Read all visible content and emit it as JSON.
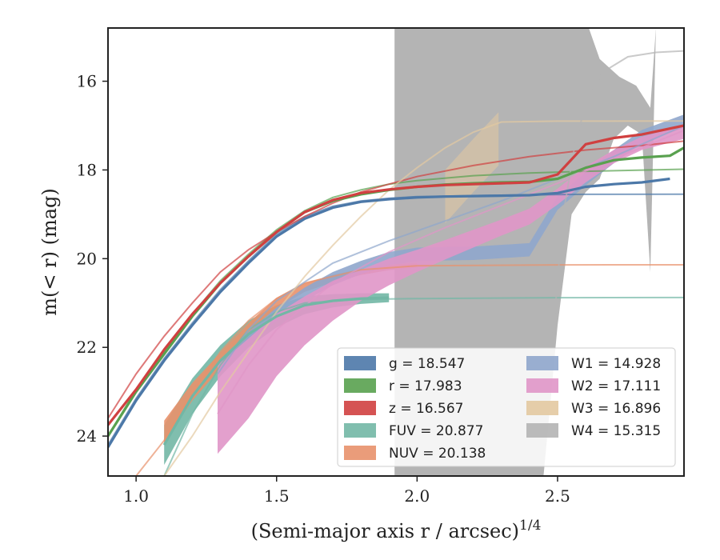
{
  "chart_data": {
    "type": "line",
    "xlabel": "(Semi-major axis r / arcsec)",
    "xlabel_exponent": "1/4",
    "ylabel": "m(< r) (mag)",
    "xlim": [
      0.9,
      2.95
    ],
    "ylim": [
      24.9,
      14.8
    ],
    "y_inverted": true,
    "x_ticks": [
      1.0,
      1.5,
      2.0,
      2.5
    ],
    "x_tick_labels": [
      "1.0",
      "1.5",
      "2.0",
      "2.5"
    ],
    "y_ticks": [
      16,
      18,
      20,
      22,
      24
    ],
    "y_tick_labels": [
      "16",
      "18",
      "20",
      "22",
      "24"
    ],
    "grid": false,
    "legend_position": "bottom-right",
    "legend_columns": 2,
    "series": [
      {
        "name": "g",
        "legend": "g = 18.547",
        "color": "#4c78a8",
        "profile": [
          [
            0.9,
            24.25
          ],
          [
            1.0,
            23.2
          ],
          [
            1.1,
            22.3
          ],
          [
            1.2,
            21.5
          ],
          [
            1.3,
            20.75
          ],
          [
            1.4,
            20.1
          ],
          [
            1.5,
            19.5
          ],
          [
            1.6,
            19.1
          ],
          [
            1.7,
            18.85
          ],
          [
            1.8,
            18.72
          ],
          [
            1.9,
            18.66
          ],
          [
            2.0,
            18.62
          ],
          [
            2.1,
            18.6
          ],
          [
            2.2,
            18.59
          ],
          [
            2.3,
            18.58
          ],
          [
            2.4,
            18.57
          ],
          [
            2.5,
            18.52
          ],
          [
            2.6,
            18.38
          ],
          [
            2.7,
            18.32
          ],
          [
            2.8,
            18.28
          ],
          [
            2.9,
            18.2
          ]
        ],
        "asymptote": [
          [
            0.9,
            24.2
          ],
          [
            1.0,
            23.15
          ],
          [
            1.1,
            22.25
          ],
          [
            1.2,
            21.45
          ],
          [
            1.3,
            20.7
          ],
          [
            1.4,
            20.05
          ],
          [
            1.5,
            19.45
          ],
          [
            1.6,
            19.05
          ],
          [
            1.7,
            18.82
          ],
          [
            1.8,
            18.7
          ],
          [
            1.9,
            18.64
          ],
          [
            2.0,
            18.6
          ],
          [
            2.3,
            18.57
          ],
          [
            2.6,
            18.55
          ],
          [
            2.95,
            18.547
          ]
        ]
      },
      {
        "name": "r",
        "legend": "r = 17.983",
        "color": "#59a14f",
        "profile": [
          [
            0.9,
            24.0
          ],
          [
            1.0,
            23.0
          ],
          [
            1.1,
            22.15
          ],
          [
            1.2,
            21.3
          ],
          [
            1.3,
            20.55
          ],
          [
            1.4,
            19.95
          ],
          [
            1.5,
            19.4
          ],
          [
            1.6,
            18.95
          ],
          [
            1.7,
            18.7
          ],
          [
            1.8,
            18.55
          ],
          [
            1.9,
            18.45
          ],
          [
            2.0,
            18.38
          ],
          [
            2.1,
            18.33
          ],
          [
            2.2,
            18.3
          ],
          [
            2.3,
            18.28
          ],
          [
            2.4,
            18.27
          ],
          [
            2.5,
            18.2
          ],
          [
            2.6,
            17.95
          ],
          [
            2.7,
            17.78
          ],
          [
            2.8,
            17.72
          ],
          [
            2.9,
            17.68
          ],
          [
            2.95,
            17.5
          ]
        ],
        "asymptote": [
          [
            0.9,
            24.0
          ],
          [
            1.0,
            22.95
          ],
          [
            1.1,
            22.1
          ],
          [
            1.2,
            21.25
          ],
          [
            1.3,
            20.5
          ],
          [
            1.4,
            19.9
          ],
          [
            1.5,
            19.35
          ],
          [
            1.6,
            18.92
          ],
          [
            1.7,
            18.62
          ],
          [
            1.8,
            18.45
          ],
          [
            1.9,
            18.32
          ],
          [
            2.0,
            18.24
          ],
          [
            2.2,
            18.13
          ],
          [
            2.4,
            18.07
          ],
          [
            2.6,
            18.03
          ],
          [
            2.95,
            17.983
          ]
        ]
      },
      {
        "name": "z",
        "legend": "z = 16.567",
        "color": "#d04040",
        "profile": [
          [
            0.9,
            23.75
          ],
          [
            1.0,
            22.95
          ],
          [
            1.1,
            22.05
          ],
          [
            1.2,
            21.25
          ],
          [
            1.3,
            20.55
          ],
          [
            1.4,
            19.95
          ],
          [
            1.5,
            19.4
          ],
          [
            1.6,
            18.95
          ],
          [
            1.7,
            18.68
          ],
          [
            1.8,
            18.52
          ],
          [
            1.9,
            18.44
          ],
          [
            2.0,
            18.38
          ],
          [
            2.1,
            18.34
          ],
          [
            2.2,
            18.32
          ],
          [
            2.3,
            18.3
          ],
          [
            2.4,
            18.28
          ],
          [
            2.5,
            18.1
          ],
          [
            2.6,
            17.42
          ],
          [
            2.7,
            17.28
          ],
          [
            2.8,
            17.2
          ],
          [
            2.95,
            17.0
          ]
        ],
        "asymptote": [
          [
            0.9,
            23.6
          ],
          [
            1.0,
            22.6
          ],
          [
            1.1,
            21.75
          ],
          [
            1.2,
            21.0
          ],
          [
            1.3,
            20.3
          ],
          [
            1.4,
            19.8
          ],
          [
            1.5,
            19.4
          ],
          [
            1.6,
            19.05
          ],
          [
            1.7,
            18.75
          ],
          [
            1.8,
            18.5
          ],
          [
            1.9,
            18.32
          ],
          [
            2.0,
            18.15
          ],
          [
            2.2,
            17.9
          ],
          [
            2.4,
            17.7
          ],
          [
            2.6,
            17.55
          ],
          [
            2.8,
            17.45
          ],
          [
            2.95,
            17.35
          ]
        ]
      },
      {
        "name": "FUV",
        "legend": "FUV = 20.877",
        "color": "#72b7a5",
        "profile": [
          [
            1.1,
            24.2
          ],
          [
            1.2,
            23.1
          ],
          [
            1.3,
            22.3
          ],
          [
            1.4,
            21.7
          ],
          [
            1.5,
            21.3
          ],
          [
            1.6,
            21.05
          ],
          [
            1.7,
            20.95
          ],
          [
            1.8,
            20.9
          ],
          [
            1.9,
            20.88
          ]
        ],
        "band_half_width": [
          0.45,
          0.4,
          0.35,
          0.3,
          0.25,
          0.2,
          0.15,
          0.12,
          0.1
        ],
        "asymptote": [
          [
            1.1,
            24.9
          ],
          [
            1.2,
            23.5
          ],
          [
            1.3,
            22.4
          ],
          [
            1.4,
            21.6
          ],
          [
            1.5,
            21.2
          ],
          [
            1.6,
            21.0
          ],
          [
            1.8,
            20.92
          ],
          [
            2.0,
            20.9
          ],
          [
            2.5,
            20.88
          ],
          [
            2.95,
            20.877
          ]
        ]
      },
      {
        "name": "NUV",
        "legend": "NUV = 20.138",
        "color": "#e8916b",
        "profile": [
          [
            1.1,
            23.9
          ],
          [
            1.2,
            23.0
          ],
          [
            1.3,
            22.3
          ],
          [
            1.4,
            21.6
          ],
          [
            1.5,
            21.0
          ],
          [
            1.6,
            20.65
          ],
          [
            1.7,
            20.45
          ],
          [
            1.8,
            20.3
          ],
          [
            1.9,
            20.2
          ],
          [
            2.0,
            20.15
          ]
        ],
        "band_half_width": [
          0.25,
          0.2,
          0.18,
          0.15,
          0.12,
          0.1,
          0.08,
          0.07,
          0.06,
          0.05
        ],
        "asymptote": [
          [
            1.0,
            24.9
          ],
          [
            1.1,
            24.1
          ],
          [
            1.2,
            23.0
          ],
          [
            1.3,
            22.1
          ],
          [
            1.4,
            21.4
          ],
          [
            1.5,
            20.9
          ],
          [
            1.6,
            20.55
          ],
          [
            1.8,
            20.25
          ],
          [
            2.0,
            20.16
          ],
          [
            2.5,
            20.14
          ],
          [
            2.95,
            20.138
          ]
        ]
      },
      {
        "name": "W1",
        "legend": "W1 = 14.928",
        "color": "#8fa6cc",
        "profile": [
          [
            1.29,
            22.5
          ],
          [
            1.4,
            21.8
          ],
          [
            1.5,
            21.25
          ],
          [
            1.6,
            20.8
          ],
          [
            1.7,
            20.45
          ],
          [
            1.8,
            20.2
          ],
          [
            1.9,
            20.0
          ],
          [
            2.0,
            19.9
          ],
          [
            2.2,
            19.88
          ],
          [
            2.4,
            19.8
          ],
          [
            2.5,
            18.75
          ],
          [
            2.6,
            18.2
          ],
          [
            2.7,
            17.7
          ],
          [
            2.8,
            17.25
          ],
          [
            2.95,
            16.9
          ]
        ],
        "band_half_width": [
          0.15,
          0.15,
          0.15,
          0.15,
          0.15,
          0.15,
          0.15,
          0.15,
          0.15,
          0.15,
          0.15,
          0.15,
          0.15,
          0.15,
          0.15
        ],
        "asymptote": [
          [
            1.29,
            22.6
          ],
          [
            1.4,
            21.6
          ],
          [
            1.5,
            20.95
          ],
          [
            1.7,
            20.1
          ],
          [
            1.9,
            19.6
          ],
          [
            2.1,
            19.15
          ],
          [
            2.3,
            18.7
          ],
          [
            2.5,
            18.2
          ],
          [
            2.7,
            17.7
          ],
          [
            2.95,
            17.0
          ]
        ]
      },
      {
        "name": "W2",
        "legend": "W2 = 17.111",
        "color": "#e096c8",
        "profile": [
          [
            1.29,
            23.4
          ],
          [
            1.4,
            22.7
          ],
          [
            1.5,
            21.95
          ],
          [
            1.6,
            21.4
          ],
          [
            1.7,
            20.95
          ],
          [
            1.8,
            20.6
          ],
          [
            1.9,
            20.3
          ],
          [
            2.0,
            20.05
          ],
          [
            2.1,
            19.8
          ],
          [
            2.2,
            19.55
          ],
          [
            2.3,
            19.3
          ],
          [
            2.4,
            19.05
          ],
          [
            2.5,
            18.6
          ],
          [
            2.6,
            18.1
          ],
          [
            2.7,
            17.7
          ],
          [
            2.8,
            17.4
          ],
          [
            2.95,
            17.15
          ]
        ],
        "band_half_width": [
          1.0,
          0.9,
          0.7,
          0.55,
          0.45,
          0.35,
          0.3,
          0.25,
          0.22,
          0.2,
          0.18,
          0.18,
          0.18,
          0.18,
          0.15,
          0.15,
          0.15
        ],
        "asymptote": [
          [
            1.29,
            23.5
          ],
          [
            1.4,
            22.4
          ],
          [
            1.5,
            21.6
          ],
          [
            1.7,
            20.55
          ],
          [
            1.9,
            19.85
          ],
          [
            2.1,
            19.3
          ],
          [
            2.3,
            18.8
          ],
          [
            2.5,
            18.3
          ],
          [
            2.7,
            17.75
          ],
          [
            2.95,
            17.11
          ]
        ]
      },
      {
        "name": "W3",
        "legend": "W3 = 16.896",
        "color": "#e3c9a1",
        "profile": [
          [
            2.1,
            18.6
          ],
          [
            2.2,
            17.9
          ],
          [
            2.29,
            17.3
          ]
        ],
        "band_half_width": [
          0.6,
          0.6,
          0.6
        ],
        "asymptote": [
          [
            1.1,
            24.9
          ],
          [
            1.2,
            24.0
          ],
          [
            1.3,
            23.0
          ],
          [
            1.4,
            22.1
          ],
          [
            1.5,
            21.2
          ],
          [
            1.6,
            20.4
          ],
          [
            1.7,
            19.7
          ],
          [
            1.8,
            19.05
          ],
          [
            1.9,
            18.45
          ],
          [
            2.0,
            17.95
          ],
          [
            2.1,
            17.5
          ],
          [
            2.2,
            17.15
          ],
          [
            2.3,
            16.92
          ],
          [
            2.5,
            16.9
          ],
          [
            2.95,
            16.896
          ]
        ]
      },
      {
        "name": "W4",
        "legend": "W4 = 15.315",
        "color": "#b4b4b4",
        "asymptote": [
          [
            2.43,
            24.9
          ],
          [
            2.48,
            22.0
          ],
          [
            2.52,
            19.0
          ],
          [
            2.56,
            17.5
          ],
          [
            2.6,
            16.5
          ],
          [
            2.66,
            15.8
          ],
          [
            2.75,
            15.45
          ],
          [
            2.85,
            15.35
          ],
          [
            2.95,
            15.315
          ]
        ]
      }
    ],
    "w4_upper_edge": [
      [
        1.92,
        14.8
      ],
      [
        2.2,
        14.8
      ],
      [
        2.3,
        14.8
      ],
      [
        2.4,
        14.8
      ],
      [
        2.45,
        14.8
      ],
      [
        2.5,
        14.8
      ],
      [
        2.55,
        14.6
      ],
      [
        2.6,
        14.6
      ],
      [
        2.65,
        15.5
      ],
      [
        2.72,
        15.9
      ],
      [
        2.78,
        16.1
      ],
      [
        2.83,
        16.6
      ],
      [
        2.85,
        14.8
      ]
    ],
    "w4_lower_edge": [
      [
        1.92,
        24.9
      ],
      [
        2.0,
        24.9
      ],
      [
        2.1,
        24.9
      ],
      [
        2.2,
        24.9
      ],
      [
        2.3,
        24.9
      ],
      [
        2.4,
        24.9
      ],
      [
        2.45,
        24.9
      ],
      [
        2.5,
        21.5
      ],
      [
        2.55,
        19.0
      ],
      [
        2.6,
        18.5
      ],
      [
        2.65,
        18.2
      ],
      [
        2.7,
        17.3
      ],
      [
        2.75,
        17.0
      ],
      [
        2.8,
        17.2
      ],
      [
        2.83,
        20.3
      ],
      [
        2.85,
        14.8
      ]
    ]
  }
}
